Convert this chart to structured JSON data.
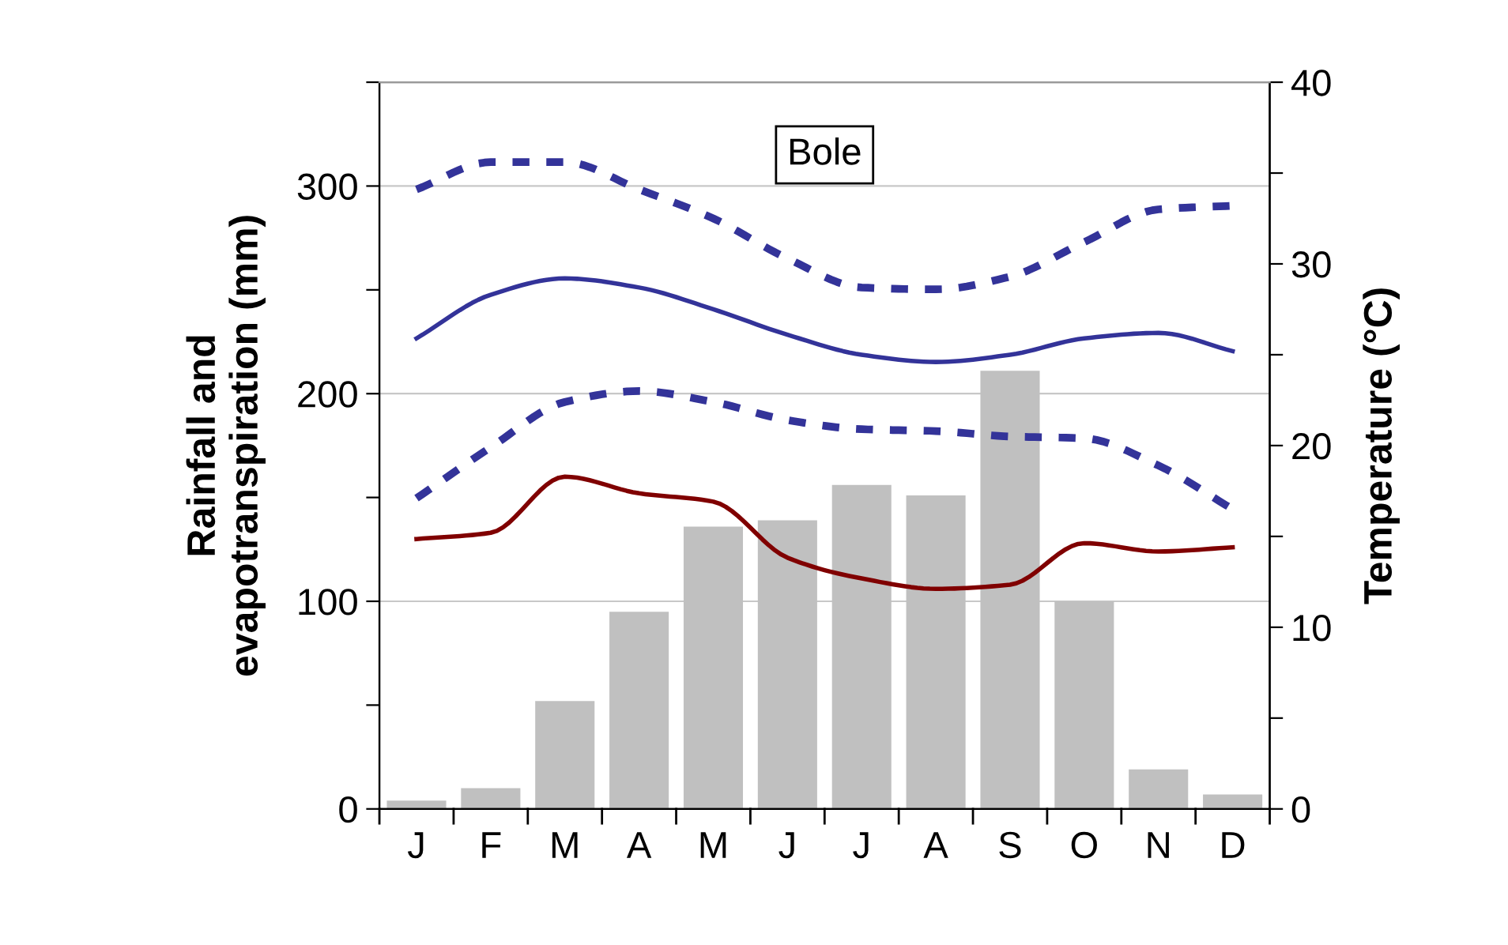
{
  "chart_data": {
    "type": "bar",
    "annotations": [
      "Bole"
    ],
    "categories": [
      "J",
      "F",
      "M",
      "A",
      "M",
      "J",
      "J",
      "A",
      "S",
      "O",
      "N",
      "D"
    ],
    "ylabel": "Rainfall and\nevapotranspiration (mm)",
    "y2label": "Temperature (°C)",
    "ylim": [
      0,
      350
    ],
    "yticks": [
      0,
      {
        "value": 50,
        "label": null
      },
      100,
      {
        "value": 150,
        "label": null
      },
      200,
      {
        "value": 250,
        "label": null
      },
      300,
      {
        "value": 350,
        "label": null
      }
    ],
    "y2lim": [
      0,
      40
    ],
    "y2ticks": [
      0,
      {
        "value": 5,
        "label": null
      },
      10,
      {
        "value": 15,
        "label": null
      },
      20,
      {
        "value": 25,
        "label": null
      },
      30,
      {
        "value": 35,
        "label": null
      },
      40
    ],
    "grid": "y",
    "legend": false,
    "series": [
      {
        "color": "#c0c0c0",
        "values": [
          4,
          10,
          52,
          95,
          136,
          139,
          156,
          151,
          211,
          100,
          19,
          7
        ]
      },
      {
        "type": "line",
        "color": "#800000",
        "line_style": "solid",
        "values": [
          130,
          133,
          160,
          152,
          148,
          121,
          111,
          106,
          108,
          128,
          124,
          126
        ]
      },
      {
        "type": "line",
        "axis": "y2",
        "color": "#333399",
        "line_style": "dashed",
        "values": [
          34.1,
          35.6,
          35.6,
          34.1,
          32.5,
          30.3,
          28.7,
          28.6,
          29.3,
          31.2,
          33.0,
          33.2
        ]
      },
      {
        "type": "line",
        "axis": "y2",
        "color": "#333399",
        "line_style": "solid",
        "values": [
          25.9,
          28.3,
          29.2,
          28.7,
          27.5,
          26.1,
          25.0,
          24.6,
          25.0,
          25.9,
          26.2,
          25.2
        ]
      },
      {
        "type": "line",
        "axis": "y2",
        "color": "#333399",
        "line_style": "dashed",
        "values": [
          17.1,
          19.9,
          22.4,
          23.0,
          22.4,
          21.4,
          20.9,
          20.8,
          20.5,
          20.4,
          18.9,
          16.5
        ]
      }
    ]
  }
}
